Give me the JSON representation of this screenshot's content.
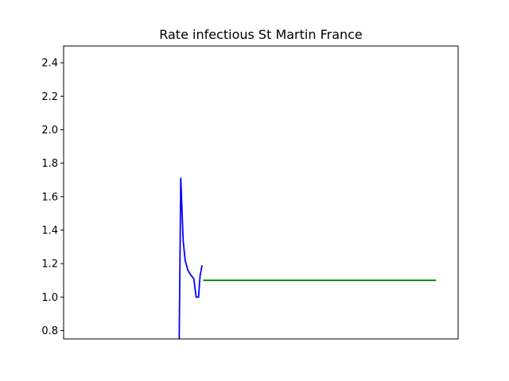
{
  "chart_data": {
    "type": "line",
    "title": "Rate infectious St Martin France",
    "xlabel": "",
    "ylabel": "",
    "ylim": [
      0.75,
      2.5
    ],
    "xlim": [
      0,
      100
    ],
    "yticks": [
      0.8,
      1.0,
      1.2,
      1.4,
      1.6,
      1.8,
      2.0,
      2.2,
      2.4
    ],
    "ytick_labels": [
      "0.8",
      "1.0",
      "1.2",
      "1.4",
      "1.6",
      "1.8",
      "2.0",
      "2.2",
      "2.4"
    ],
    "xticks": [],
    "grid": false,
    "series": [
      {
        "color": "#0000ff",
        "x": [
          29.3,
          29.7,
          30.3,
          30.8,
          31.5,
          32.3,
          33.0,
          33.6,
          34.2,
          34.6,
          35.1
        ],
        "y": [
          0.75,
          1.71,
          1.34,
          1.22,
          1.16,
          1.13,
          1.11,
          1.0,
          1.0,
          1.13,
          1.19
        ]
      },
      {
        "color": "#008000",
        "x": [
          35.4,
          94.4
        ],
        "y": [
          1.1,
          1.1
        ]
      }
    ]
  }
}
